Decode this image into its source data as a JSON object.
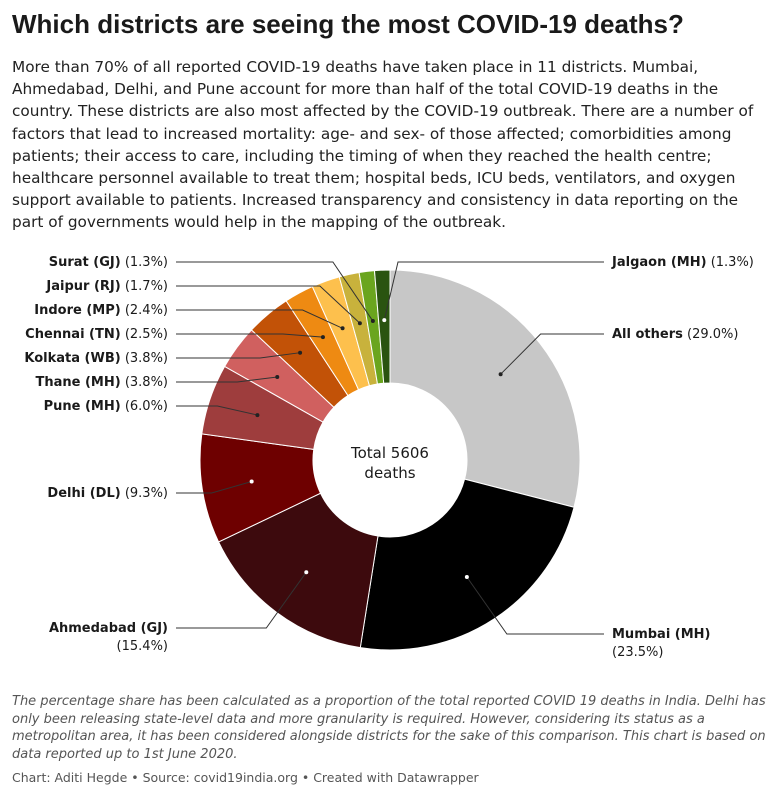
{
  "title": "Which districts are seeing the most COVID-19 deaths?",
  "description": "More than 70% of all reported COVID-19 deaths have taken place in 11 districts. Mumbai, Ahmedabad, Delhi, and Pune account for more than half of the total COVID-19 deaths in the country. These districts are also most affected by the COVID-19 outbreak. There are a number of factors that lead to increased mortality: age- and sex- of those affected; comorbidities among patients; their access to care, including the timing of when they reached the health centre; healthcare personnel available to treat them; hospital beds, ICU beds, ventilators, and oxygen support available to patients. Increased transparency and consistency in data reporting on the part of governments would help in the mapping of the outbreak.",
  "notes": "The percentage share has been calculated as a proportion of the total reported COVID 19 deaths in India. Delhi has only been releasing state-level data and more granularity is required. However, considering its status as a metropolitan area, it has been considered alongside districts for the sake of this comparison. This chart is based on data reported up to 1st June 2020.",
  "credit": "Chart: Aditi Hegde • Source: covid19india.org • Created with Datawrapper",
  "chart_data": {
    "type": "pie",
    "donut": true,
    "center_label_line1": "Total 5606",
    "center_label_line2": "deaths",
    "slices": [
      {
        "name": "All others",
        "value": 29.0,
        "display": "(29.0%)",
        "color": "#c7c7c7",
        "side": "right"
      },
      {
        "name": "Mumbai (MH)",
        "value": 23.5,
        "display": "(23.5%)",
        "color": "#000000",
        "side": "right"
      },
      {
        "name": "Ahmedabad (GJ)",
        "value": 15.4,
        "display": "(15.4%)",
        "color": "#3d0a0d",
        "side": "left"
      },
      {
        "name": "Delhi (DL)",
        "value": 9.3,
        "display": "(9.3%)",
        "color": "#6e0000",
        "side": "left"
      },
      {
        "name": "Pune (MH)",
        "value": 6.0,
        "display": "(6.0%)",
        "color": "#9e3d3d",
        "side": "left"
      },
      {
        "name": "Thane (MH)",
        "value": 3.8,
        "display": "(3.8%)",
        "color": "#d0605f",
        "side": "left"
      },
      {
        "name": "Kolkata (WB)",
        "value": 3.8,
        "display": "(3.8%)",
        "color": "#c25207",
        "side": "left"
      },
      {
        "name": "Chennai (TN)",
        "value": 2.5,
        "display": "(2.5%)",
        "color": "#ee8a12",
        "side": "left"
      },
      {
        "name": "Indore (MP)",
        "value": 2.4,
        "display": "(2.4%)",
        "color": "#fdc04d",
        "side": "left"
      },
      {
        "name": "Jaipur (RJ)",
        "value": 1.7,
        "display": "(1.7%)",
        "color": "#c8b23c",
        "side": "left"
      },
      {
        "name": "Surat (GJ)",
        "value": 1.3,
        "display": "(1.3%)",
        "color": "#6aa51e",
        "side": "left"
      },
      {
        "name": "Jalgaon (MH)",
        "value": 1.3,
        "display": "(1.3%)",
        "color": "#2a5410",
        "side": "right"
      }
    ]
  }
}
